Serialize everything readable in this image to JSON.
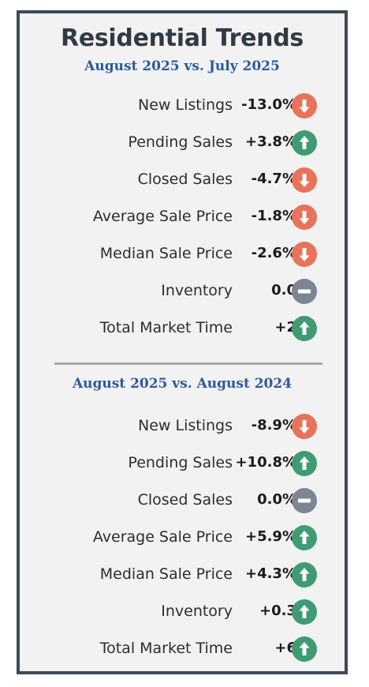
{
  "title": "Residential Trends",
  "sections": [
    {
      "heading": "August 2025 vs. July 2025",
      "rows": [
        {
          "label": "New Listings",
          "value": "-13.0%",
          "trend": "down"
        },
        {
          "label": "Pending Sales",
          "value": "+3.8%",
          "trend": "up"
        },
        {
          "label": "Closed Sales",
          "value": "-4.7%",
          "trend": "down"
        },
        {
          "label": "Average Sale Price",
          "value": "-1.8%",
          "trend": "down"
        },
        {
          "label": "Median Sale Price",
          "value": "-2.6%",
          "trend": "down"
        },
        {
          "label": "Inventory",
          "value": "0.0",
          "trend": "flat"
        },
        {
          "label": "Total Market Time",
          "value": "+2",
          "trend": "up"
        }
      ]
    },
    {
      "heading": "August 2025 vs. August 2024",
      "rows": [
        {
          "label": "New Listings",
          "value": "-8.9%",
          "trend": "down"
        },
        {
          "label": "Pending Sales",
          "value": "+10.8%",
          "trend": "up"
        },
        {
          "label": "Closed Sales",
          "value": "0.0%",
          "trend": "flat"
        },
        {
          "label": "Average Sale Price",
          "value": "+5.9%",
          "trend": "up"
        },
        {
          "label": "Median Sale Price",
          "value": "+4.3%",
          "trend": "up"
        },
        {
          "label": "Inventory",
          "value": "+0.3",
          "trend": "up"
        },
        {
          "label": "Total Market Time",
          "value": "+6",
          "trend": "up"
        }
      ]
    }
  ],
  "icons": {
    "up": "arrow-up-icon",
    "down": "arrow-down-icon",
    "flat": "minus-icon"
  },
  "colors": {
    "down": "#e8725a",
    "up": "#3f9b72",
    "flat": "#7c8594",
    "heading": "#2b5a9c",
    "border": "#3d4a57"
  }
}
